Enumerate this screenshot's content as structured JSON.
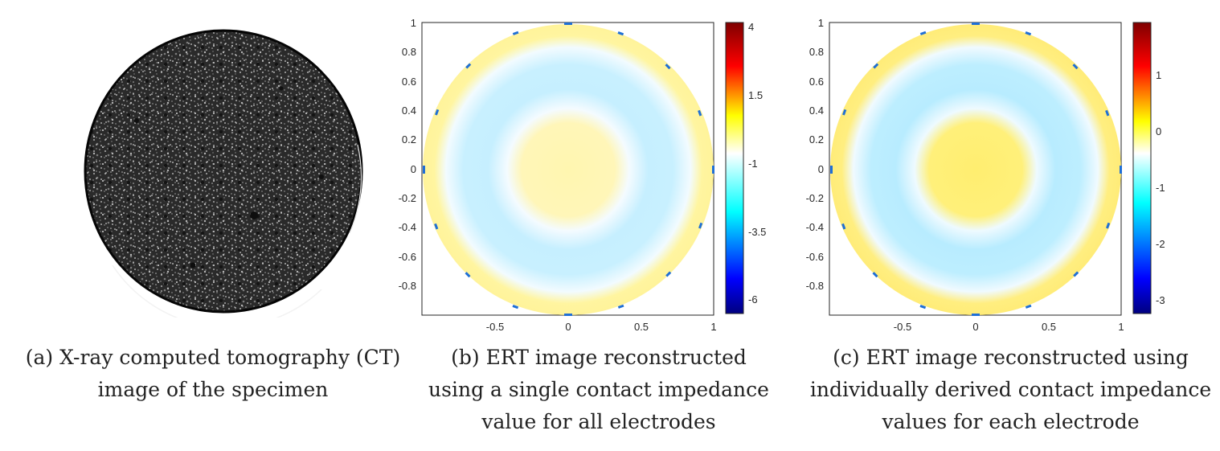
{
  "captions": {
    "a": [
      "(a) X-ray computed tomography (CT)",
      "image of the specimen"
    ],
    "b": [
      "(b) ERT image reconstructed",
      "using a single contact impedance",
      "value for all electrodes"
    ],
    "c": [
      "(c) ERT image reconstructed using",
      "individually derived contact impedance",
      "values for each electrode"
    ]
  },
  "plot_axes": {
    "x_ticks": [
      "-0.5",
      "0",
      "0.5",
      "1"
    ],
    "y_ticks": [
      "1",
      "0.8",
      "0.6",
      "0.4",
      "0.2",
      "0",
      "-0.2",
      "-0.4",
      "-0.6",
      "-0.8"
    ]
  },
  "colorbar_b": {
    "ticks": [
      "4",
      "1.5",
      "-1",
      "-3.5",
      "-6"
    ]
  },
  "colorbar_c": {
    "ticks": [
      "1",
      "0",
      "-1",
      "-2",
      "-3"
    ]
  },
  "colormap": "jet",
  "colors": {
    "ct_background": "#2b2b2b",
    "yellow": "#fff29a",
    "cyan": "#bff0ff",
    "white": "#ffffff"
  }
}
